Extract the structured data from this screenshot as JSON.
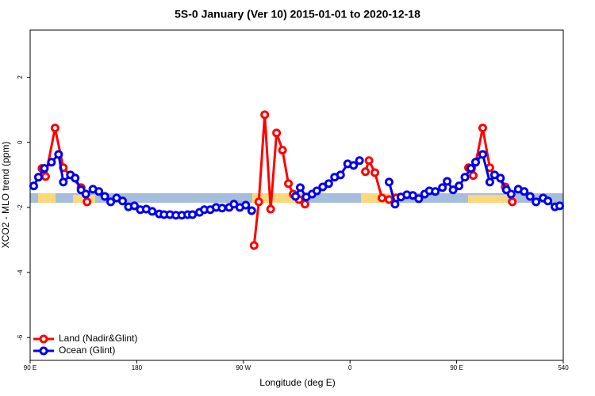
{
  "chart_data": {
    "type": "line",
    "title": "5S-0 January (Ver 10)   2015-01-01 to 2020-12-18",
    "xlabel": "Longitude (deg E)",
    "ylabel": "XCO2 - MLO trend (ppm)",
    "xlim": [
      90,
      540
    ],
    "ylim": [
      -6.7,
      3.45
    ],
    "xticks": [
      {
        "value": 90,
        "label": "90 E"
      },
      180,
      {
        "value": 270,
        "label": "90 W"
      },
      {
        "value": 360,
        "label": "0"
      },
      {
        "value": 450,
        "label": "90 E"
      },
      540
    ],
    "yticks": [
      -6,
      -4,
      -2,
      0,
      2
    ],
    "legend": "bottom-left",
    "series": [
      {
        "name": "Land (Nadir&Glint)",
        "color": "#ff0000",
        "x": [
          100,
          103,
          111,
          118,
          133,
          138,
          null,
          279,
          283,
          288,
          293,
          298,
          303,
          308,
          312,
          317,
          322,
          null,
          373,
          376,
          381,
          387,
          393,
          399,
          null,
          460,
          464,
          472,
          478,
          491,
          497
        ],
        "values": [
          -0.8,
          -1.05,
          0.44,
          -0.78,
          -1.39,
          -1.83,
          null,
          -3.17,
          -1.83,
          0.85,
          -2.05,
          0.29,
          -0.24,
          -1.27,
          -1.59,
          -1.76,
          -1.9,
          null,
          -0.9,
          -0.56,
          -0.93,
          -1.71,
          -1.76,
          -1.71,
          null,
          -0.78,
          -1.02,
          0.44,
          -0.78,
          -1.37,
          -1.83
        ]
      },
      {
        "name": "Ocean (Glint)",
        "color": "#0000ee",
        "x": [
          93,
          97,
          102,
          108,
          114,
          118,
          124,
          128,
          133,
          137,
          143,
          148,
          153,
          158,
          163,
          168,
          173,
          178,
          183,
          188,
          193,
          199,
          203,
          208,
          213,
          218,
          223,
          227,
          233,
          237,
          242,
          247,
          252,
          258,
          262,
          267,
          272,
          277,
          null,
          314,
          318,
          323,
          328,
          332,
          337,
          342,
          347,
          352,
          358,
          363,
          368,
          null,
          393,
          398,
          403,
          408,
          413,
          418,
          423,
          427,
          432,
          438,
          442,
          447,
          452,
          457,
          462,
          466,
          472,
          478,
          482,
          487,
          492,
          496,
          502,
          507,
          512,
          517,
          523,
          527,
          533,
          537
        ],
        "values": [
          -1.34,
          -1.07,
          -0.8,
          -0.61,
          -0.37,
          -1.22,
          -1.0,
          -1.1,
          -1.46,
          -1.59,
          -1.44,
          -1.51,
          -1.66,
          -1.83,
          -1.71,
          -1.8,
          -1.98,
          -1.95,
          -2.07,
          -2.05,
          -2.12,
          -2.2,
          -2.22,
          -2.22,
          -2.24,
          -2.24,
          -2.22,
          -2.22,
          -2.15,
          -2.07,
          -2.07,
          -2.0,
          -2.02,
          -2.0,
          -1.9,
          -2.0,
          -1.93,
          -2.1,
          null,
          -1.66,
          -1.39,
          -1.68,
          -1.59,
          -1.49,
          -1.37,
          -1.27,
          -1.07,
          -1.0,
          -0.66,
          -0.71,
          -0.56,
          null,
          -1.22,
          -1.9,
          -1.68,
          -1.61,
          -1.63,
          -1.73,
          -1.59,
          -1.49,
          -1.51,
          -1.39,
          -1.2,
          -1.46,
          -1.34,
          -1.07,
          -0.8,
          -0.61,
          -0.37,
          -1.22,
          -1.0,
          -1.1,
          -1.46,
          -1.59,
          -1.44,
          -1.51,
          -1.66,
          -1.83,
          -1.71,
          -1.8,
          -1.98,
          -1.95
        ]
      }
    ]
  }
}
